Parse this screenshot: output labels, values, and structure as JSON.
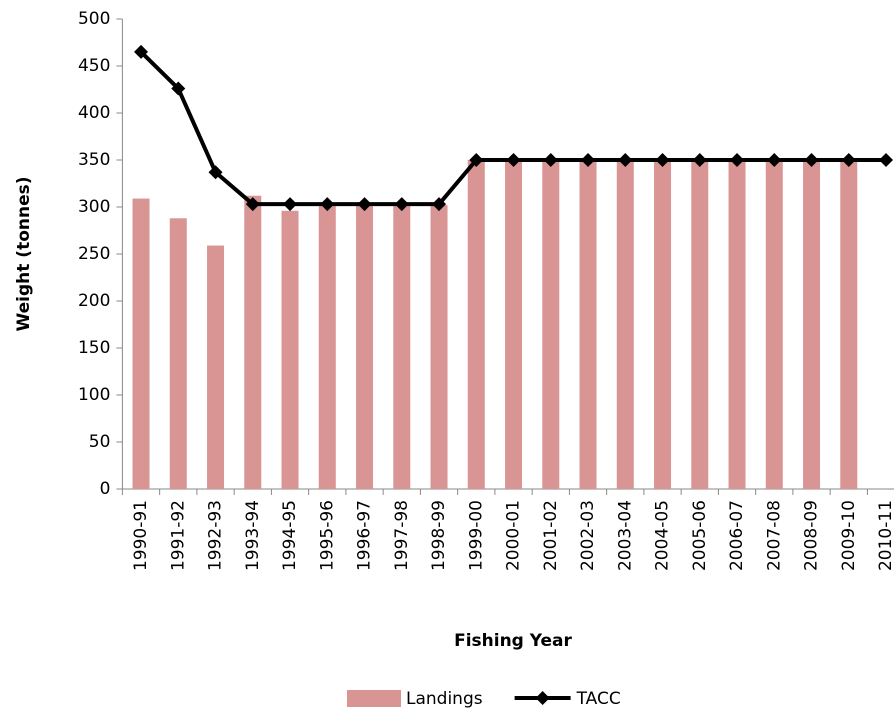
{
  "chart_data": {
    "type": "bar",
    "x_label": "Fishing Year",
    "y_label": "Weight (tonnes)",
    "categories": [
      "1990-91",
      "1991-92",
      "1992-93",
      "1993-94",
      "1994-95",
      "1995-96",
      "1996-97",
      "1997-98",
      "1998-99",
      "1999-00",
      "2000-01",
      "2001-02",
      "2002-03",
      "2003-04",
      "2004-05",
      "2005-06",
      "2006-07",
      "2007-08",
      "2008-09",
      "2009-10",
      "2010-11"
    ],
    "series": [
      {
        "name": "Landings",
        "type": "bar",
        "color": "#d99594",
        "values": [
          309,
          288,
          259,
          312,
          296,
          301,
          303,
          301,
          302,
          350,
          350,
          350,
          350,
          350,
          350,
          350,
          350,
          350,
          350,
          350,
          null
        ]
      },
      {
        "name": "TACC",
        "type": "line",
        "color": "#000000",
        "values": [
          465,
          426,
          337,
          303,
          303,
          303,
          303,
          303,
          303,
          350,
          350,
          350,
          350,
          350,
          350,
          350,
          350,
          350,
          350,
          350,
          350
        ]
      }
    ],
    "ylim": [
      0,
      500
    ],
    "yticks": [
      0,
      50,
      100,
      150,
      200,
      250,
      300,
      350,
      400,
      450,
      500
    ],
    "grid": false,
    "legend": "bottom"
  }
}
